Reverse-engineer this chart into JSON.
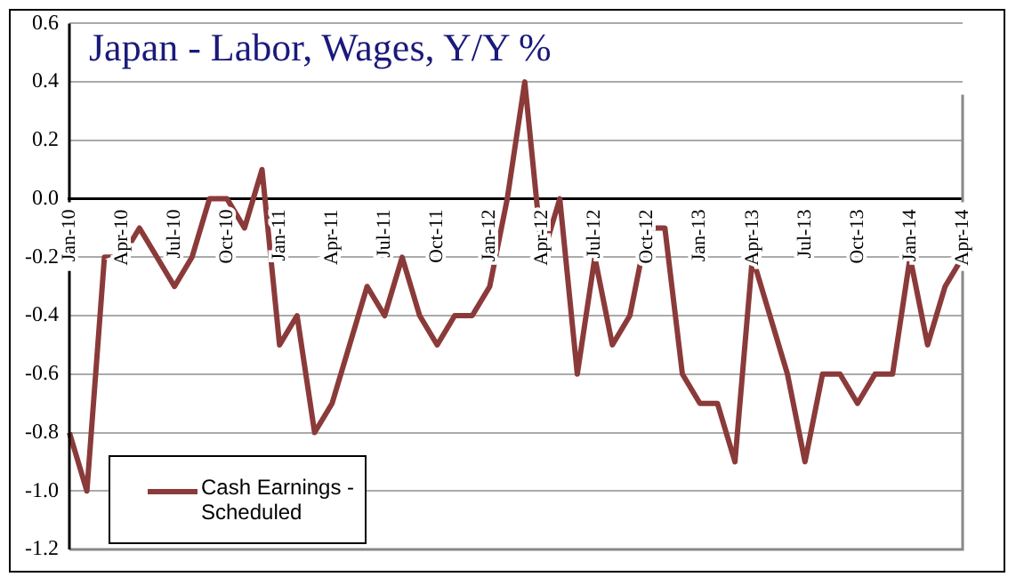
{
  "chart_data": {
    "type": "line",
    "title": "Japan - Labor, Wages, Y/Y %",
    "categories": [
      "Jan-10",
      null,
      null,
      "Apr-10",
      null,
      null,
      "Jul-10",
      null,
      null,
      "Oct-10",
      null,
      null,
      "Jan-11",
      null,
      null,
      "Apr-11",
      null,
      null,
      "Jul-11",
      null,
      null,
      "Oct-11",
      null,
      null,
      "Jan-12",
      null,
      null,
      "Apr-12",
      null,
      null,
      "Jul-12",
      null,
      null,
      "Oct-12",
      null,
      null,
      "Jan-13",
      null,
      null,
      "Apr-13",
      null,
      null,
      "Jul-13",
      null,
      null,
      "Oct-13",
      null,
      null,
      "Jan-14",
      null,
      null,
      "Apr-14"
    ],
    "series": [
      {
        "name": "Cash Earnings - Scheduled",
        "color": "#8b3a3a",
        "values": [
          -0.8,
          -1.0,
          -0.2,
          -0.2,
          -0.1,
          -0.2,
          -0.3,
          -0.2,
          0.0,
          0.0,
          -0.1,
          0.1,
          -0.5,
          -0.4,
          -0.8,
          -0.7,
          -0.5,
          -0.3,
          -0.4,
          -0.2,
          -0.4,
          -0.5,
          -0.4,
          -0.4,
          -0.3,
          0.0,
          0.4,
          -0.2,
          0.0,
          -0.6,
          -0.2,
          -0.5,
          -0.4,
          -0.1,
          -0.1,
          -0.6,
          -0.7,
          -0.7,
          -0.9,
          -0.2,
          -0.4,
          -0.6,
          -0.9,
          -0.6,
          -0.6,
          -0.7,
          -0.6,
          -0.6,
          -0.2,
          -0.5,
          -0.3,
          -0.2
        ]
      }
    ],
    "ylim": [
      -1.2,
      0.6
    ],
    "yticks": [
      {
        "value": -1.2,
        "label": "-1.2"
      },
      {
        "value": -1.0,
        "label": "-1.0"
      },
      {
        "value": -0.8,
        "label": "-0.8"
      },
      {
        "value": -0.6,
        "label": "-0.6"
      },
      {
        "value": -0.4,
        "label": "-0.4"
      },
      {
        "value": -0.2,
        "label": "-0.2"
      },
      {
        "value": 0,
        "label": "0.0"
      },
      {
        "value": 0.2,
        "label": "0.2"
      },
      {
        "value": 0.4,
        "label": "0.4"
      },
      {
        "value": 0.6,
        "label": "0.6"
      }
    ],
    "grid": "y",
    "legend": "bottom left",
    "marker": "none",
    "line_style": "solid"
  }
}
